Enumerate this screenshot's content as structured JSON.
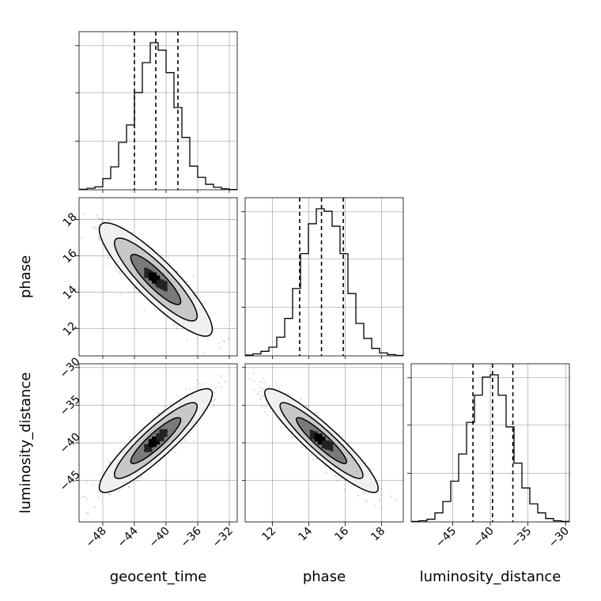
{
  "chart_data": {
    "type": "corner",
    "parameters": [
      "geocent_time",
      "phase",
      "luminosity_distance"
    ],
    "axis_labels": {
      "geocent_time": "geocent_time",
      "phase": "phase",
      "luminosity_distance": "luminosity_distance"
    },
    "ranges": {
      "geocent_time": [
        -51,
        -31
      ],
      "phase": [
        10.5,
        19.2
      ],
      "luminosity_distance": [
        -50.5,
        -29.5
      ]
    },
    "ticks": {
      "geocent_time": [
        -48,
        -44,
        -40,
        -36,
        -32
      ],
      "phase": [
        12,
        14,
        16,
        18
      ],
      "luminosity_distance": [
        -45,
        -40,
        -35,
        -30
      ]
    },
    "tick_labels": {
      "geocent_time": [
        "−48",
        "−44",
        "−40",
        "−36",
        "−32"
      ],
      "phase": [
        "12",
        "14",
        "16",
        "18"
      ],
      "luminosity_distance": [
        "−45",
        "−40",
        "−35",
        "−30"
      ]
    },
    "medians": {
      "geocent_time": -41.3,
      "phase": 14.7,
      "luminosity_distance": -39.7
    },
    "quantiles_16_84": {
      "geocent_time": [
        -44.0,
        -38.5
      ],
      "phase": [
        13.5,
        15.9
      ],
      "luminosity_distance": [
        -42.3,
        -37.0
      ]
    },
    "histograms": {
      "geocent_time": {
        "edges": [
          -51,
          -50,
          -49,
          -48,
          -47,
          -46,
          -45,
          -44,
          -43,
          -42,
          -41,
          -40,
          -39,
          -38,
          -37,
          -36,
          -35,
          -34,
          -33,
          -32,
          -31
        ],
        "counts": [
          2,
          6,
          12,
          45,
          92,
          190,
          260,
          390,
          510,
          590,
          560,
          470,
          330,
          210,
          95,
          50,
          22,
          10,
          4,
          1
        ]
      },
      "phase": {
        "edges": [
          10.5,
          10.935,
          11.37,
          11.805,
          12.24,
          12.675,
          13.11,
          13.545,
          13.98,
          14.415,
          14.85,
          15.285,
          15.72,
          16.155,
          16.59,
          17.025,
          17.46,
          17.895,
          18.33,
          18.765,
          19.2
        ],
        "counts": [
          3,
          8,
          18,
          35,
          75,
          150,
          270,
          410,
          530,
          590,
          580,
          520,
          410,
          250,
          130,
          70,
          30,
          12,
          5,
          2
        ]
      },
      "luminosity_distance": {
        "edges": [
          -50.5,
          -49.45,
          -48.4,
          -47.35,
          -46.3,
          -45.25,
          -44.2,
          -43.15,
          -42.1,
          -41.05,
          -40.0,
          -38.95,
          -37.9,
          -36.85,
          -35.8,
          -34.75,
          -33.7,
          -32.65,
          -31.6,
          -30.55,
          -29.5
        ],
        "counts": [
          2,
          5,
          12,
          40,
          90,
          180,
          300,
          440,
          560,
          640,
          650,
          560,
          420,
          260,
          150,
          80,
          40,
          15,
          5,
          2
        ]
      }
    },
    "correlations": {
      "phase|geocent_time": -0.88,
      "luminosity_distance|geocent_time": 0.9,
      "luminosity_distance|phase": -0.92
    },
    "grid": true,
    "legend": "none"
  }
}
